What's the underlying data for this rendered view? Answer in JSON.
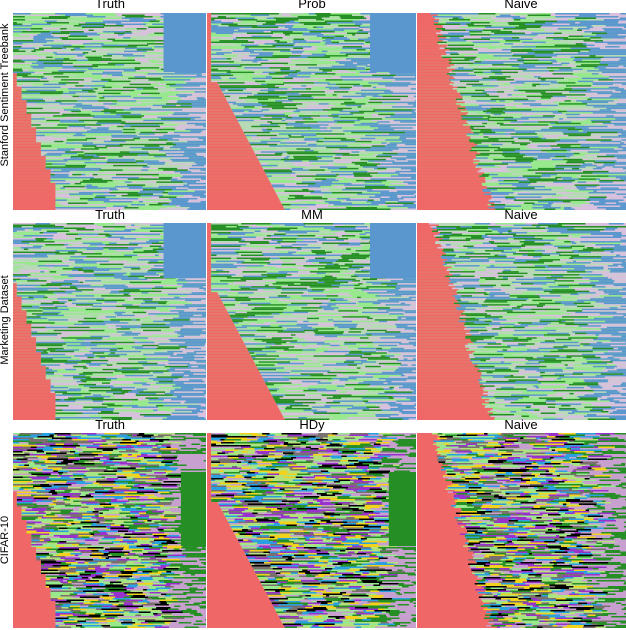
{
  "chart_data": [
    {
      "type": "heatmap",
      "row_label": "Stanford Sentiment Treebank",
      "panel_titles": [
        "Truth",
        "Prob",
        "Naive"
      ],
      "class_colors": [
        "#f06767",
        "#98e88e",
        "#258f25",
        "#b9d9b9",
        "#d9c0df",
        "#5b97cf"
      ]
    },
    {
      "type": "heatmap",
      "row_label": "Marketing Dataset",
      "panel_titles": [
        "Truth",
        "MM",
        "Naive"
      ],
      "class_colors": [
        "#f06767",
        "#98e88e",
        "#258f25",
        "#b9d9b9",
        "#d9c0df",
        "#5b97cf"
      ]
    },
    {
      "type": "heatmap",
      "row_label": "CIFAR-10",
      "panel_titles": [
        "Truth",
        "HDy",
        "Naive"
      ],
      "class_colors": [
        "#f06767",
        "#98e88e",
        "#000000",
        "#f2d21b",
        "#9932cc",
        "#2aa0e0",
        "#c7a0cf",
        "#7a6f6f",
        "#b5e07a",
        "#258f25"
      ]
    }
  ]
}
